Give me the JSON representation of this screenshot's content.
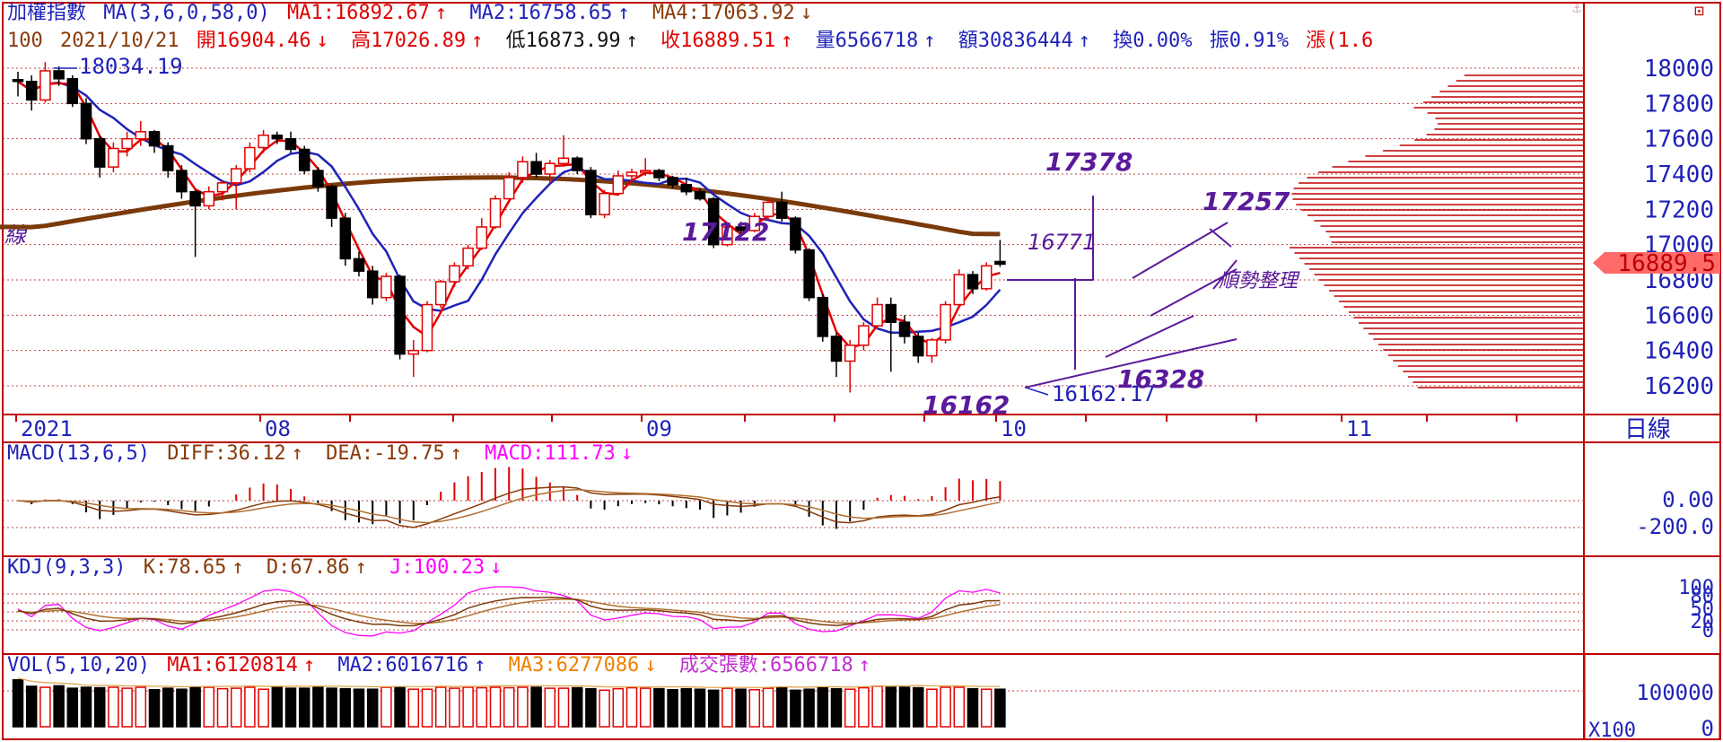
{
  "colors": {
    "frame": "#c00000",
    "up": "#e00000",
    "down": "#000000",
    "ma_short": "#e00000",
    "ma_mid": "#1f22b8",
    "ma_long": "#7a3a0a",
    "annot": "#5a1a9a",
    "grid": "#c04040",
    "volume_profile": "#c00000",
    "price_badge": "#ff6a6a",
    "kdj_j": "#ff00ff"
  },
  "header": {
    "line1": {
      "name": "加權指數",
      "ma_def": "MA(3,6,0,58,0)",
      "ma1": "MA1:16892.67",
      "ma1_arrow": "↑",
      "ma2": "MA2:16758.65",
      "ma2_arrow": "↑",
      "ma4": "MA4:17063.92",
      "ma4_arrow": "↓"
    },
    "line2": {
      "code": "100",
      "date": "2021/10/21",
      "open": "開16904.46",
      "open_arrow": "↓",
      "high": "高17026.89",
      "high_arrow": "↑",
      "low": "低16873.99",
      "low_arrow": "↑",
      "close": "收16889.51",
      "close_arrow": "↑",
      "volume": "量6566718",
      "volume_arrow": "↑",
      "amount": "額30836444",
      "amount_arrow": "↑",
      "turnover": "換0.00%",
      "amplitude": "振0.91%",
      "change": "漲(1.6"
    }
  },
  "top_icons": {
    "anchor": "⚓",
    "window": "⊡"
  },
  "price_axis": [
    "18000",
    "17800",
    "17600",
    "17400",
    "17200",
    "17000",
    "16800",
    "16600",
    "16400",
    "16200"
  ],
  "price_badge": "16889.5",
  "period_label": "日線",
  "left_edge_label": "線",
  "date_axis": [
    "2021",
    "08",
    "09",
    "10",
    "11"
  ],
  "annotations": {
    "high_label": "18034.19",
    "low_label": "16162.17",
    "a17378": "17378",
    "a17257": "17257",
    "a17122": "17122",
    "a16771": "16771",
    "a16328": "16328",
    "a16162": "16162",
    "trend_note": "順勢整理"
  },
  "macd": {
    "title": "MACD(13,6,5)",
    "diff": "DIFF:36.12",
    "diff_arrow": "↑",
    "dea": "DEA:-19.75",
    "dea_arrow": "↑",
    "macd": "MACD:111.73",
    "macd_arrow": "↓",
    "axis": [
      "0.00",
      "-200.0"
    ]
  },
  "kdj": {
    "title": "KDJ(9,3,3)",
    "k": "K:78.65",
    "k_arrow": "↑",
    "d": "D:67.86",
    "d_arrow": "↑",
    "j": "J:100.23",
    "j_arrow": "↓",
    "axis": [
      "100",
      "80",
      "50",
      "20",
      "0"
    ]
  },
  "vol": {
    "title": "VOL(5,10,20)",
    "ma1": "MA1:6120814",
    "ma1_arrow": "↑",
    "ma2": "MA2:6016716",
    "ma2_arrow": "↑",
    "ma3": "MA3:6277086",
    "ma3_arrow": "↓",
    "shares": "成交張數:6566718",
    "shares_arrow": "↑",
    "axis": [
      "100000",
      "0"
    ],
    "unit": "X100"
  },
  "chart_data": {
    "type": "candlestick",
    "price_range": [
      16100,
      18100
    ],
    "candles": [
      [
        17935,
        17980,
        17840,
        17925
      ],
      [
        17925,
        17960,
        17760,
        17820
      ],
      [
        17820,
        18034.19,
        17805,
        17985
      ],
      [
        17985,
        18010,
        17900,
        17940
      ],
      [
        17940,
        17960,
        17780,
        17800
      ],
      [
        17800,
        17830,
        17570,
        17600
      ],
      [
        17600,
        17620,
        17380,
        17440
      ],
      [
        17440,
        17580,
        17410,
        17545
      ],
      [
        17545,
        17640,
        17500,
        17600
      ],
      [
        17600,
        17700,
        17560,
        17640
      ],
      [
        17640,
        17650,
        17520,
        17560
      ],
      [
        17560,
        17580,
        17380,
        17420
      ],
      [
        17420,
        17450,
        17260,
        17300
      ],
      [
        17300,
        17310,
        16930,
        17220
      ],
      [
        17220,
        17330,
        17200,
        17300
      ],
      [
        17300,
        17360,
        17250,
        17350
      ],
      [
        17350,
        17450,
        17200,
        17430
      ],
      [
        17430,
        17580,
        17410,
        17550
      ],
      [
        17550,
        17650,
        17520,
        17620
      ],
      [
        17620,
        17640,
        17570,
        17600
      ],
      [
        17600,
        17640,
        17520,
        17540
      ],
      [
        17540,
        17560,
        17400,
        17420
      ],
      [
        17420,
        17440,
        17300,
        17330
      ],
      [
        17330,
        17340,
        17100,
        17150
      ],
      [
        17150,
        17180,
        16880,
        16920
      ],
      [
        16920,
        16960,
        16820,
        16850
      ],
      [
        16850,
        16880,
        16660,
        16700
      ],
      [
        16700,
        16840,
        16680,
        16820
      ],
      [
        16820,
        16830,
        16350,
        16380
      ],
      [
        16380,
        16460,
        16250,
        16400
      ],
      [
        16400,
        16680,
        16390,
        16660
      ],
      [
        16660,
        16800,
        16640,
        16790
      ],
      [
        16790,
        16900,
        16760,
        16880
      ],
      [
        16880,
        17000,
        16860,
        16980
      ],
      [
        16980,
        17150,
        16970,
        17100
      ],
      [
        17100,
        17280,
        17090,
        17260
      ],
      [
        17260,
        17410,
        17250,
        17380
      ],
      [
        17380,
        17500,
        17350,
        17470
      ],
      [
        17470,
        17520,
        17380,
        17400
      ],
      [
        17400,
        17480,
        17350,
        17460
      ],
      [
        17460,
        17620,
        17440,
        17490
      ],
      [
        17490,
        17500,
        17400,
        17420
      ],
      [
        17420,
        17440,
        17150,
        17170
      ],
      [
        17170,
        17310,
        17150,
        17290
      ],
      [
        17290,
        17420,
        17280,
        17390
      ],
      [
        17390,
        17430,
        17360,
        17410
      ],
      [
        17410,
        17490,
        17390,
        17420
      ],
      [
        17420,
        17430,
        17360,
        17380
      ],
      [
        17380,
        17390,
        17320,
        17340
      ],
      [
        17340,
        17380,
        17280,
        17300
      ],
      [
        17300,
        17320,
        17250,
        17260
      ],
      [
        17260,
        17270,
        16980,
        17000
      ],
      [
        17000,
        17120,
        16990,
        17100
      ],
      [
        17100,
        17130,
        17060,
        17080
      ],
      [
        17080,
        17180,
        17070,
        17160
      ],
      [
        17160,
        17260,
        17140,
        17240
      ],
      [
        17240,
        17300,
        17130,
        17150
      ],
      [
        17150,
        17160,
        16950,
        16970
      ],
      [
        16970,
        16980,
        16680,
        16700
      ],
      [
        16700,
        16720,
        16450,
        16480
      ],
      [
        16480,
        16500,
        16250,
        16340
      ],
      [
        16340,
        16460,
        16162.17,
        16430
      ],
      [
        16430,
        16560,
        16400,
        16540
      ],
      [
        16540,
        16700,
        16520,
        16660
      ],
      [
        16660,
        16700,
        16280,
        16560
      ],
      [
        16560,
        16600,
        16440,
        16480
      ],
      [
        16480,
        16500,
        16330,
        16370
      ],
      [
        16370,
        16470,
        16330,
        16460
      ],
      [
        16460,
        16680,
        16440,
        16660
      ],
      [
        16660,
        16860,
        16650,
        16830
      ],
      [
        16830,
        16850,
        16720,
        16750
      ],
      [
        16750,
        16900,
        16740,
        16880
      ],
      [
        16904.46,
        17026.89,
        16873.99,
        16889.51
      ]
    ],
    "volumes": [
      95,
      82,
      80,
      83,
      78,
      80,
      79,
      80,
      78,
      80,
      75,
      78,
      76,
      80,
      80,
      77,
      78,
      80,
      76,
      80,
      78,
      78,
      80,
      78,
      77,
      76,
      76,
      80,
      80,
      76,
      76,
      80,
      78,
      80,
      79,
      80,
      79,
      80,
      80,
      78,
      78,
      79,
      77,
      74,
      77,
      79,
      78,
      77,
      75,
      77,
      76,
      74,
      78,
      76,
      75,
      78,
      80,
      74,
      76,
      80,
      77,
      76,
      79,
      82,
      80,
      80,
      79,
      76,
      80,
      80,
      77,
      76,
      76
    ]
  }
}
